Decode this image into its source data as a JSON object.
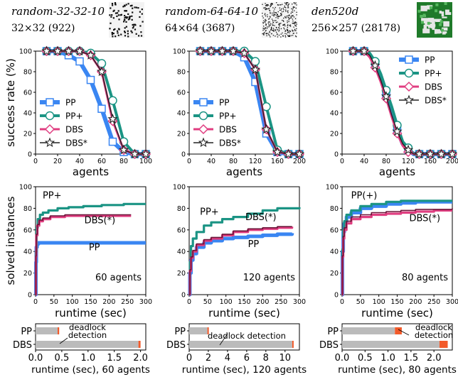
{
  "colors": {
    "PP": "#3a86f2",
    "PP+": "#1b9484",
    "DBS": "#e03d80",
    "DBS*": "#222222",
    "DBS_run": "#6b1538",
    "bar_gray": "#bbbbbb",
    "deadlock": "#f25a2a"
  },
  "maps": [
    {
      "name": "random-32-32-10",
      "size": "32×32 (922)",
      "map_style": "sparse-obstacle-grid"
    },
    {
      "name": "random-64-64-10",
      "size": "64×64 (3687)",
      "map_style": "dense-obstacle-grid"
    },
    {
      "name": "den520d",
      "size": "256×257 (28178)",
      "map_style": "game-map-green"
    }
  ],
  "chart_data": [
    {
      "type": "line",
      "id": "success-random32",
      "xlabel": "agents",
      "ylabel": "success rate (%)",
      "xlim": [
        0,
        100
      ],
      "ylim": [
        0,
        100
      ],
      "xticks": [
        0,
        20,
        40,
        60,
        80,
        100
      ],
      "yticks": [
        0,
        20,
        40,
        60,
        80,
        100
      ],
      "legend": "left",
      "series": [
        {
          "name": "PP",
          "x": [
            10,
            20,
            30,
            40,
            50,
            60,
            70,
            80,
            90,
            100
          ],
          "y": [
            100,
            100,
            96,
            90,
            72,
            44,
            12,
            2,
            0,
            0
          ]
        },
        {
          "name": "PP+",
          "x": [
            10,
            20,
            30,
            40,
            50,
            60,
            70,
            80,
            90,
            100
          ],
          "y": [
            100,
            100,
            100,
            100,
            98,
            88,
            52,
            12,
            0,
            0
          ]
        },
        {
          "name": "DBS",
          "x": [
            10,
            20,
            30,
            40,
            50,
            60,
            70,
            80,
            90,
            100
          ],
          "y": [
            100,
            100,
            100,
            100,
            96,
            80,
            32,
            4,
            0,
            0
          ]
        },
        {
          "name": "DBS*",
          "x": [
            10,
            20,
            30,
            40,
            50,
            60,
            70,
            80,
            90,
            100
          ],
          "y": [
            100,
            100,
            100,
            100,
            96,
            80,
            34,
            4,
            0,
            0
          ]
        }
      ]
    },
    {
      "type": "line",
      "id": "success-random64",
      "xlabel": "agents",
      "ylabel": "",
      "xlim": [
        0,
        200
      ],
      "ylim": [
        0,
        100
      ],
      "xticks": [
        0,
        40,
        80,
        120,
        160,
        200
      ],
      "yticks": [
        0,
        20,
        40,
        60,
        80,
        100
      ],
      "legend": "left",
      "series": [
        {
          "name": "PP",
          "x": [
            20,
            40,
            60,
            80,
            100,
            120,
            140,
            160,
            180,
            200
          ],
          "y": [
            100,
            100,
            100,
            100,
            94,
            70,
            20,
            2,
            0,
            0
          ]
        },
        {
          "name": "PP+",
          "x": [
            20,
            40,
            60,
            80,
            100,
            120,
            140,
            160,
            180,
            200
          ],
          "y": [
            100,
            100,
            100,
            100,
            100,
            90,
            46,
            4,
            0,
            0
          ]
        },
        {
          "name": "DBS",
          "x": [
            20,
            40,
            60,
            80,
            100,
            120,
            140,
            160,
            180,
            200
          ],
          "y": [
            100,
            100,
            100,
            100,
            98,
            82,
            24,
            2,
            0,
            0
          ]
        },
        {
          "name": "DBS*",
          "x": [
            20,
            40,
            60,
            80,
            100,
            120,
            140,
            160,
            180,
            200
          ],
          "y": [
            100,
            100,
            100,
            100,
            98,
            82,
            24,
            2,
            0,
            0
          ]
        }
      ]
    },
    {
      "type": "line",
      "id": "success-den520d",
      "xlabel": "agents",
      "ylabel": "",
      "xlim": [
        0,
        200
      ],
      "ylim": [
        0,
        100
      ],
      "xticks": [
        0,
        40,
        80,
        120,
        160,
        200
      ],
      "yticks": [
        0,
        20,
        40,
        60,
        80,
        100
      ],
      "legend": "top-right",
      "series": [
        {
          "name": "PP",
          "x": [
            20,
            30,
            40,
            50,
            60,
            70,
            80,
            90,
            100,
            110,
            120,
            130,
            140,
            150,
            160,
            170,
            180,
            190,
            200
          ],
          "y": [
            100,
            100,
            100,
            96,
            88,
            74,
            58,
            40,
            24,
            10,
            4,
            0,
            0,
            0,
            0,
            0,
            0,
            0,
            0
          ]
        },
        {
          "name": "PP+",
          "x": [
            20,
            30,
            40,
            50,
            60,
            70,
            80,
            90,
            100,
            110,
            120,
            130,
            140,
            150,
            160,
            170,
            180,
            190,
            200
          ],
          "y": [
            100,
            100,
            100,
            98,
            90,
            78,
            62,
            46,
            28,
            12,
            6,
            0,
            0,
            0,
            0,
            0,
            0,
            0,
            0
          ]
        },
        {
          "name": "DBS",
          "x": [
            20,
            30,
            40,
            50,
            60,
            70,
            80,
            90,
            100,
            110,
            120,
            130,
            140,
            150,
            160,
            170,
            180,
            190,
            200
          ],
          "y": [
            100,
            100,
            100,
            94,
            84,
            70,
            54,
            36,
            20,
            8,
            2,
            0,
            0,
            0,
            0,
            0,
            0,
            0,
            0
          ]
        },
        {
          "name": "DBS*",
          "x": [
            20,
            30,
            40,
            50,
            60,
            70,
            80,
            90,
            100,
            110,
            120,
            130,
            140,
            150,
            160,
            170,
            180,
            190,
            200
          ],
          "y": [
            100,
            100,
            100,
            96,
            86,
            72,
            56,
            38,
            22,
            10,
            4,
            0,
            0,
            0,
            0,
            0,
            0,
            0,
            0
          ]
        }
      ]
    },
    {
      "type": "line",
      "id": "runtime-random32",
      "xlabel": "runtime (sec)",
      "ylabel": "solved instances",
      "xlim": [
        0,
        300
      ],
      "ylim": [
        0,
        100
      ],
      "xticks": [
        0,
        50,
        100,
        150,
        200,
        250,
        300
      ],
      "yticks": [
        0,
        20,
        40,
        60,
        80,
        100
      ],
      "note": "60 agents",
      "labels": [
        {
          "text": "PP+",
          "x": 45,
          "y": 89
        },
        {
          "text": "DBS(*)",
          "x": 175,
          "y": 66
        },
        {
          "text": "PP",
          "x": 160,
          "y": 41
        }
      ],
      "series": [
        {
          "name": "PP",
          "x": [
            0,
            1,
            2,
            4,
            8,
            300
          ],
          "y": [
            0,
            30,
            44,
            47,
            48,
            48
          ]
        },
        {
          "name": "PP+",
          "x": [
            0,
            1,
            3,
            6,
            12,
            20,
            35,
            60,
            90,
            130,
            180,
            240,
            300
          ],
          "y": [
            0,
            40,
            62,
            70,
            74,
            76,
            78,
            80,
            81,
            82,
            83,
            84,
            84
          ]
        },
        {
          "name": "DBS",
          "x": [
            0,
            1,
            2,
            5,
            10,
            20,
            40,
            80,
            130,
            200,
            260
          ],
          "y": [
            0,
            35,
            55,
            64,
            68,
            70,
            72,
            73,
            73,
            73,
            73
          ]
        },
        {
          "name": "DBS*",
          "x": [
            0,
            1,
            2,
            5,
            10,
            20,
            40,
            80,
            130,
            200,
            260
          ],
          "y": [
            0,
            36,
            56,
            65,
            69,
            71,
            73,
            74,
            74,
            74,
            74
          ]
        }
      ]
    },
    {
      "type": "line",
      "id": "runtime-random64",
      "xlabel": "runtime (sec)",
      "ylabel": "",
      "xlim": [
        0,
        300
      ],
      "ylim": [
        0,
        100
      ],
      "xticks": [
        0,
        50,
        100,
        150,
        200,
        250,
        300
      ],
      "yticks": [
        0,
        20,
        40,
        60,
        80,
        100
      ],
      "note": "120 agents",
      "labels": [
        {
          "text": "PP+",
          "x": 55,
          "y": 74
        },
        {
          "text": "DBS(*)",
          "x": 195,
          "y": 69
        },
        {
          "text": "PP",
          "x": 175,
          "y": 44
        }
      ],
      "series": [
        {
          "name": "PP",
          "x": [
            0,
            2,
            5,
            10,
            20,
            40,
            60,
            90,
            120,
            160,
            200,
            240,
            280
          ],
          "y": [
            0,
            20,
            32,
            38,
            44,
            48,
            50,
            52,
            53,
            54,
            55,
            56,
            57
          ]
        },
        {
          "name": "PP+",
          "x": [
            0,
            2,
            5,
            10,
            20,
            40,
            60,
            90,
            120,
            160,
            200,
            240,
            300
          ],
          "y": [
            0,
            30,
            45,
            52,
            58,
            64,
            67,
            70,
            72,
            75,
            78,
            80,
            81
          ]
        },
        {
          "name": "DBS",
          "x": [
            0,
            2,
            5,
            10,
            20,
            40,
            60,
            90,
            120,
            160,
            200,
            240,
            280
          ],
          "y": [
            0,
            22,
            34,
            40,
            46,
            50,
            52,
            55,
            58,
            60,
            61,
            62,
            63
          ]
        },
        {
          "name": "DBS*",
          "x": [
            0,
            2,
            5,
            10,
            20,
            40,
            60,
            90,
            120,
            160,
            200,
            240,
            280
          ],
          "y": [
            0,
            23,
            35,
            41,
            47,
            51,
            53,
            56,
            59,
            61,
            62,
            63,
            63
          ]
        }
      ]
    },
    {
      "type": "line",
      "id": "runtime-den520d",
      "xlabel": "runtime (sec)",
      "ylabel": "",
      "xlim": [
        0,
        300
      ],
      "ylim": [
        0,
        100
      ],
      "xticks": [
        0,
        50,
        100,
        150,
        200,
        250,
        300
      ],
      "yticks": [
        0,
        20,
        40,
        60,
        80,
        100
      ],
      "note": "80 agents",
      "labels": [
        {
          "text": "PP(+)",
          "x": 60,
          "y": 89
        },
        {
          "text": "DBS(*)",
          "x": 225,
          "y": 68
        }
      ],
      "series": [
        {
          "name": "PP",
          "x": [
            0,
            1,
            3,
            6,
            12,
            25,
            50,
            80,
            120,
            160,
            200,
            250,
            300
          ],
          "y": [
            0,
            40,
            58,
            66,
            72,
            76,
            80,
            82,
            84,
            85,
            86,
            86,
            86
          ]
        },
        {
          "name": "PP+",
          "x": [
            0,
            1,
            3,
            6,
            12,
            25,
            50,
            80,
            120,
            160,
            200,
            250,
            300
          ],
          "y": [
            0,
            42,
            60,
            68,
            74,
            78,
            82,
            84,
            86,
            87,
            87,
            87,
            87
          ]
        },
        {
          "name": "DBS",
          "x": [
            0,
            1,
            3,
            6,
            12,
            25,
            50,
            80,
            120,
            160,
            200,
            250,
            300
          ],
          "y": [
            0,
            35,
            52,
            60,
            66,
            70,
            72,
            74,
            75,
            76,
            77,
            78,
            78
          ]
        },
        {
          "name": "DBS*",
          "x": [
            0,
            1,
            3,
            6,
            12,
            25,
            50,
            80,
            120,
            160,
            200,
            250,
            300
          ],
          "y": [
            0,
            36,
            54,
            62,
            68,
            72,
            74,
            76,
            77,
            78,
            79,
            79,
            80
          ]
        }
      ]
    },
    {
      "type": "bar",
      "id": "breakdown-random32",
      "xlabel": "runtime (sec), 60 agents",
      "xlim": [
        0,
        2.1
      ],
      "xticks": [
        0.0,
        0.5,
        1.0,
        1.5,
        2.0
      ],
      "annotation": "deadlock\ndetection",
      "rows": [
        {
          "name": "PP",
          "total": 0.45,
          "deadlock": 0.03
        },
        {
          "name": "DBS",
          "total": 2.0,
          "deadlock": 0.04
        }
      ]
    },
    {
      "type": "bar",
      "id": "breakdown-random64",
      "xlabel": "runtime (sec), 120 agents",
      "xlim": [
        0,
        11.5
      ],
      "xticks": [
        0,
        2,
        4,
        6,
        8,
        10
      ],
      "annotation": "deadlock detection",
      "rows": [
        {
          "name": "PP",
          "total": 2.0,
          "deadlock": 0.1
        },
        {
          "name": "DBS",
          "total": 10.9,
          "deadlock": 0.15
        }
      ]
    },
    {
      "type": "bar",
      "id": "breakdown-den520d",
      "xlabel": "runtime (sec), 80 agents",
      "xlim": [
        0,
        2.4
      ],
      "xticks": [
        0.0,
        0.5,
        1.0,
        1.5,
        2.0
      ],
      "annotation": "deadlock\ndetection",
      "rows": [
        {
          "name": "PP",
          "total": 1.3,
          "deadlock": 0.15
        },
        {
          "name": "DBS",
          "total": 2.3,
          "deadlock": 0.18
        }
      ]
    }
  ]
}
